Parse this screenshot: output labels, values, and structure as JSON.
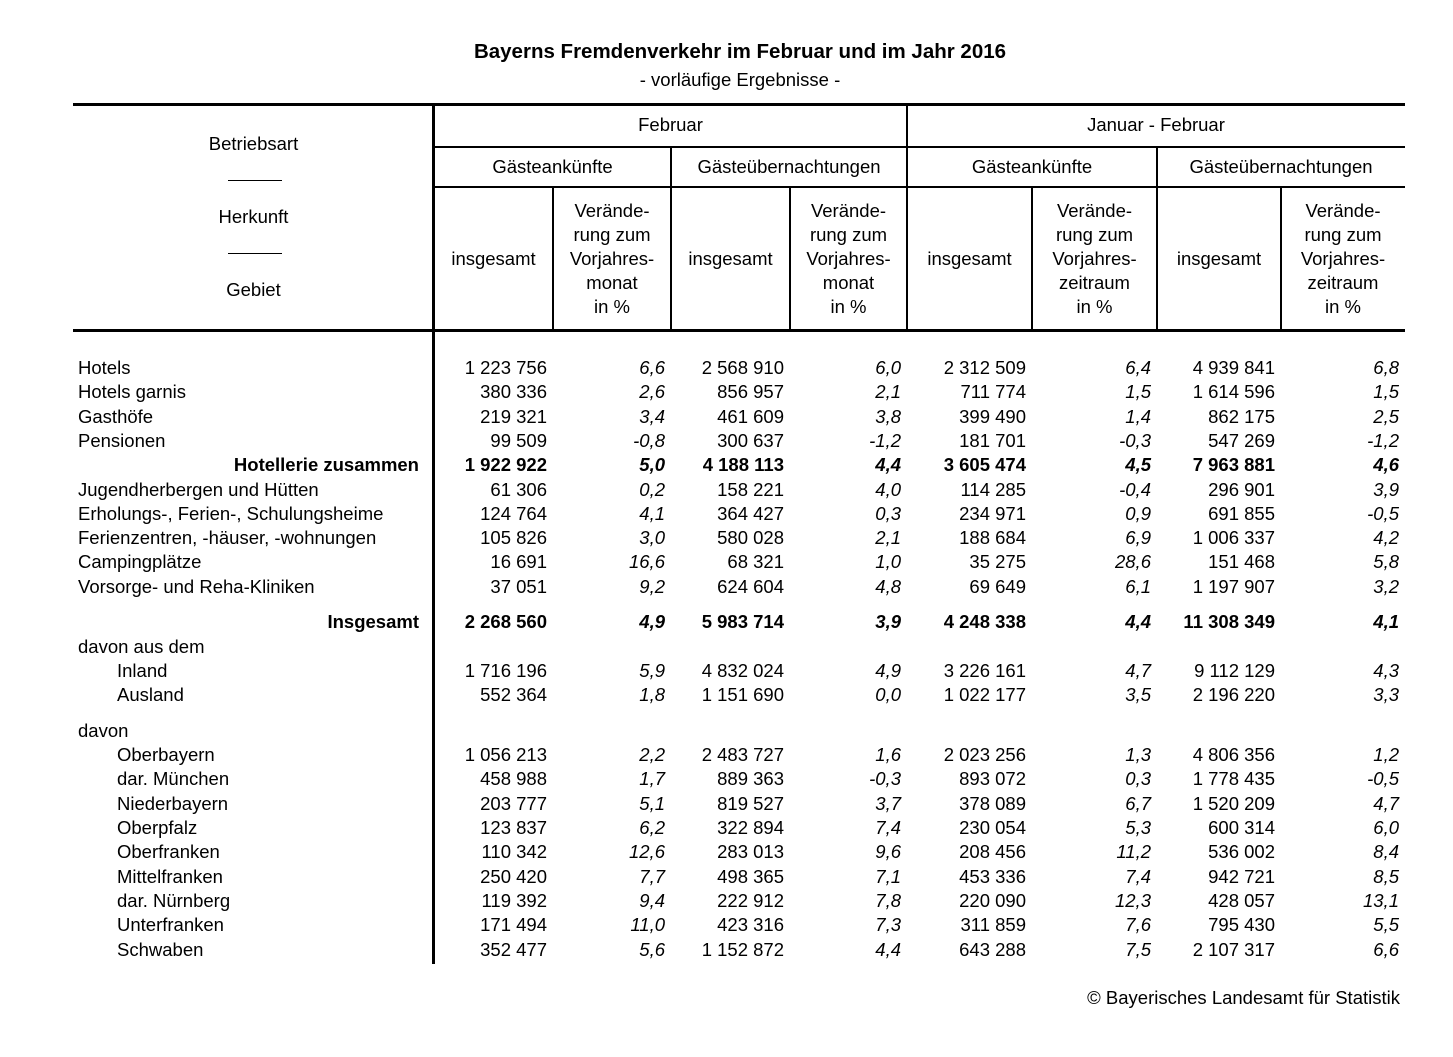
{
  "header": {
    "title": "Bayerns Fremdenverkehr im Februar und im Jahr 2016",
    "subtitle": "- vorläufige Ergebnisse -"
  },
  "table": {
    "stub_header": [
      "Betriebsart",
      "Herkunft",
      "Gebiet"
    ],
    "periods": [
      "Februar",
      "Januar - Februar"
    ],
    "measures": [
      "Gästeankünfte",
      "Gästeübernachtungen",
      "Gästeankünfte",
      "Gästeübernachtungen"
    ],
    "columns": [
      [
        "insgesamt"
      ],
      [
        "Verände-",
        "rung zum",
        "Vorjahres-",
        "monat",
        "in %"
      ],
      [
        "insgesamt"
      ],
      [
        "Verände-",
        "rung zum",
        "Vorjahres-",
        "monat",
        "in %"
      ],
      [
        "insgesamt"
      ],
      [
        "Verände-",
        "rung zum",
        "Vorjahres-",
        "zeitraum",
        "in %"
      ],
      [
        "insgesamt"
      ],
      [
        "Verände-",
        "rung zum",
        "Vorjahres-",
        "zeitraum",
        "in %"
      ]
    ],
    "rows": [
      {
        "label": "Hotels",
        "values": [
          "1 223 756",
          "6,6",
          "2 568 910",
          "6,0",
          "2 312 509",
          "6,4",
          "4 939 841",
          "6,8"
        ]
      },
      {
        "label": "Hotels garnis",
        "values": [
          "380 336",
          "2,6",
          "856 957",
          "2,1",
          "711 774",
          "1,5",
          "1 614 596",
          "1,5"
        ]
      },
      {
        "label": "Gasthöfe",
        "values": [
          "219 321",
          "3,4",
          "461 609",
          "3,8",
          "399 490",
          "1,4",
          "862 175",
          "2,5"
        ]
      },
      {
        "label": "Pensionen",
        "values": [
          "99 509",
          "-0,8",
          "300 637",
          "-1,2",
          "181 701",
          "-0,3",
          "547 269",
          "-1,2"
        ]
      },
      {
        "label": "Hotellerie zusammen",
        "bold": true,
        "values": [
          "1 922 922",
          "5,0",
          "4 188 113",
          "4,4",
          "3 605 474",
          "4,5",
          "7 963 881",
          "4,6"
        ]
      },
      {
        "label": "Jugendherbergen und Hütten",
        "values": [
          "61 306",
          "0,2",
          "158 221",
          "4,0",
          "114 285",
          "-0,4",
          "296 901",
          "3,9"
        ]
      },
      {
        "label": "Erholungs-, Ferien-, Schulungsheime",
        "values": [
          "124 764",
          "4,1",
          "364 427",
          "0,3",
          "234 971",
          "0,9",
          "691 855",
          "-0,5"
        ]
      },
      {
        "label": "Ferienzentren, -häuser, -wohnungen",
        "values": [
          "105 826",
          "3,0",
          "580 028",
          "2,1",
          "188 684",
          "6,9",
          "1 006 337",
          "4,2"
        ]
      },
      {
        "label": "Campingplätze",
        "values": [
          "16 691",
          "16,6",
          "68 321",
          "1,0",
          "35 275",
          "28,6",
          "151 468",
          "5,8"
        ]
      },
      {
        "label": "Vorsorge- und Reha-Kliniken",
        "values": [
          "37 051",
          "9,2",
          "624 604",
          "4,8",
          "69 649",
          "6,1",
          "1 197 907",
          "3,2"
        ]
      },
      {
        "label": "Insgesamt",
        "bold": true,
        "values": [
          "2 268 560",
          "4,9",
          "5 983 714",
          "3,9",
          "4 248 338",
          "4,4",
          "11 308 349",
          "4,1"
        ]
      },
      {
        "label": "davon aus dem"
      },
      {
        "label": "Inland",
        "indent": true,
        "values": [
          "1 716 196",
          "5,9",
          "4 832 024",
          "4,9",
          "3 226 161",
          "4,7",
          "9 112 129",
          "4,3"
        ]
      },
      {
        "label": "Ausland",
        "indent": true,
        "values": [
          "552 364",
          "1,8",
          "1 151 690",
          "0,0",
          "1 022 177",
          "3,5",
          "2 196 220",
          "3,3"
        ]
      },
      {
        "label": "davon"
      },
      {
        "label": "Oberbayern",
        "indent": true,
        "values": [
          "1 056 213",
          "2,2",
          "2 483 727",
          "1,6",
          "2 023 256",
          "1,3",
          "4 806 356",
          "1,2"
        ]
      },
      {
        "label": "dar. München",
        "indent": true,
        "values": [
          "458 988",
          "1,7",
          "889 363",
          "-0,3",
          "893 072",
          "0,3",
          "1 778 435",
          "-0,5"
        ]
      },
      {
        "label": "Niederbayern",
        "indent": true,
        "values": [
          "203 777",
          "5,1",
          "819 527",
          "3,7",
          "378 089",
          "6,7",
          "1 520 209",
          "4,7"
        ]
      },
      {
        "label": "Oberpfalz",
        "indent": true,
        "values": [
          "123 837",
          "6,2",
          "322 894",
          "7,4",
          "230 054",
          "5,3",
          "600 314",
          "6,0"
        ]
      },
      {
        "label": "Oberfranken",
        "indent": true,
        "values": [
          "110 342",
          "12,6",
          "283 013",
          "9,6",
          "208 456",
          "11,2",
          "536 002",
          "8,4"
        ]
      },
      {
        "label": "Mittelfranken",
        "indent": true,
        "values": [
          "250 420",
          "7,7",
          "498 365",
          "7,1",
          "453 336",
          "7,4",
          "942 721",
          "8,5"
        ]
      },
      {
        "label": "dar. Nürnberg",
        "indent": true,
        "values": [
          "119 392",
          "9,4",
          "222 912",
          "7,8",
          "220 090",
          "12,3",
          "428 057",
          "13,1"
        ]
      },
      {
        "label": "Unterfranken",
        "indent": true,
        "values": [
          "171 494",
          "11,0",
          "423 316",
          "7,3",
          "311 859",
          "7,6",
          "795 430",
          "5,5"
        ]
      },
      {
        "label": "Schwaben",
        "indent": true,
        "values": [
          "352 477",
          "5,6",
          "1 152 872",
          "4,4",
          "643 288",
          "7,5",
          "2 107 317",
          "6,6"
        ]
      }
    ]
  },
  "footer": {
    "copyright": "© Bayerisches Landesamt für Statistik"
  }
}
